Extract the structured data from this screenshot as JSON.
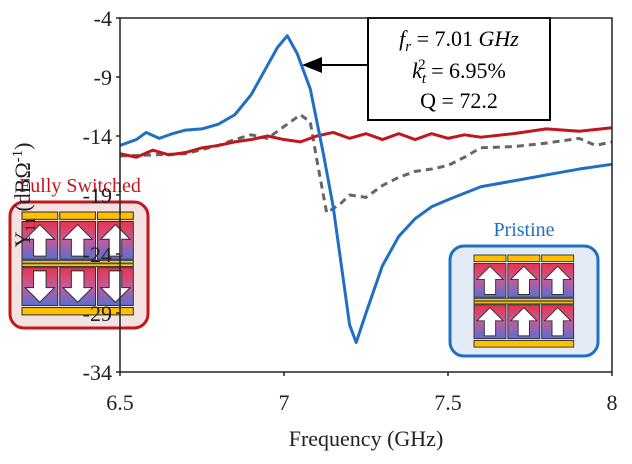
{
  "chart_data": {
    "type": "line",
    "xlabel": "Frequency (GHz)",
    "ylabel": [
      "Y",
      "11",
      " (dBΩ",
      "-1",
      ")"
    ],
    "xlim": [
      6.5,
      8
    ],
    "xticks": [
      6.5,
      7,
      7.5,
      8
    ],
    "ylim": [
      -34,
      -4
    ],
    "yticks": [
      -34,
      -29,
      -24,
      -19,
      -14,
      -9,
      -4
    ],
    "grid": false,
    "series": [
      {
        "color": "#1f6fc5",
        "dash": false,
        "x": [
          6.5,
          6.55,
          6.58,
          6.62,
          6.66,
          6.7,
          6.75,
          6.8,
          6.85,
          6.9,
          6.95,
          6.98,
          7.01,
          7.04,
          7.08,
          7.12,
          7.15,
          7.18,
          7.2,
          7.22,
          7.25,
          7.3,
          7.35,
          7.4,
          7.45,
          7.5,
          7.6,
          7.7,
          7.8,
          7.9,
          8.0
        ],
        "values": [
          -14.8,
          -14.3,
          -13.7,
          -14.2,
          -13.8,
          -13.5,
          -13.4,
          -13,
          -12.2,
          -10.5,
          -8,
          -6.5,
          -5.5,
          -7,
          -10,
          -15.5,
          -20,
          -26,
          -30,
          -31.5,
          -29,
          -25,
          -22.5,
          -21,
          -20,
          -19.4,
          -18.3,
          -17.8,
          -17.3,
          -16.8,
          -16.4
        ]
      },
      {
        "color": "#c0161c",
        "dash": false,
        "x": [
          6.5,
          6.55,
          6.6,
          6.65,
          6.7,
          6.75,
          6.8,
          6.85,
          6.9,
          6.95,
          7.0,
          7.05,
          7.1,
          7.15,
          7.2,
          7.25,
          7.3,
          7.35,
          7.4,
          7.45,
          7.5,
          7.55,
          7.6,
          7.7,
          7.8,
          7.9,
          8.0
        ],
        "values": [
          -15.5,
          -15.8,
          -15.2,
          -15.6,
          -15.4,
          -15.0,
          -14.8,
          -14.5,
          -14.3,
          -14.0,
          -14.3,
          -14.5,
          -14.0,
          -13.7,
          -14.2,
          -13.8,
          -14.3,
          -13.8,
          -14.3,
          -13.8,
          -14.2,
          -13.9,
          -14.1,
          -13.8,
          -13.4,
          -13.6,
          -13.3
        ]
      },
      {
        "color": "#666666",
        "dash": true,
        "x": [
          6.5,
          6.6,
          6.7,
          6.8,
          6.85,
          6.9,
          6.95,
          7.0,
          7.05,
          7.08,
          7.1,
          7.13,
          7.17,
          7.2,
          7.25,
          7.3,
          7.35,
          7.4,
          7.45,
          7.5,
          7.55,
          7.6,
          7.7,
          7.8,
          7.9,
          7.95,
          8.0
        ],
        "values": [
          -15.7,
          -15.6,
          -15.5,
          -14.8,
          -14.3,
          -13.9,
          -14.2,
          -13.2,
          -12.2,
          -12.8,
          -16,
          -20.5,
          -19.8,
          -19,
          -19.2,
          -18.2,
          -17.5,
          -17,
          -16.8,
          -16.5,
          -15.8,
          -15,
          -14.9,
          -14.6,
          -14.2,
          -14.8,
          -14.5
        ]
      }
    ],
    "annotation": {
      "line1": [
        "f",
        "r",
        " = 7.01 ",
        "GHz"
      ],
      "line2": [
        "k",
        "t",
        "2",
        " = 6.95%"
      ],
      "line3": "Q = 72.2"
    },
    "labels": {
      "switched": "Fully Switched",
      "pristine": "Pristine"
    }
  }
}
